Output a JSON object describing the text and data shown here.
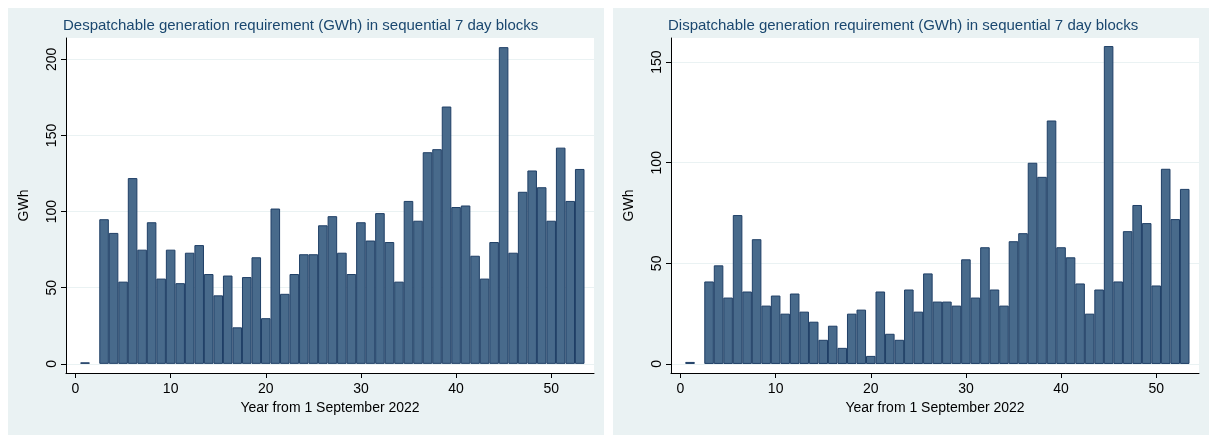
{
  "chart_data": [
    {
      "type": "bar",
      "title": "Despatchable generation requirement (GWh) in sequential 7 day blocks",
      "xlabel": "Year from 1 September 2022",
      "ylabel": "GWh",
      "x": [
        1,
        2,
        3,
        4,
        5,
        6,
        7,
        8,
        9,
        10,
        11,
        12,
        13,
        14,
        15,
        16,
        17,
        18,
        19,
        20,
        21,
        22,
        23,
        24,
        25,
        26,
        27,
        28,
        29,
        30,
        31,
        32,
        33,
        34,
        35,
        36,
        37,
        38,
        39,
        40,
        41,
        42,
        43,
        44,
        45,
        46,
        47,
        48,
        49,
        50,
        51,
        52,
        53
      ],
      "series": [
        {
          "color": "#486a8b",
          "values": [
            1,
            null,
            95,
            86,
            54,
            122,
            75,
            93,
            56,
            75,
            53,
            73,
            78,
            59,
            45,
            58,
            24,
            57,
            70,
            30,
            102,
            46,
            59,
            72,
            72,
            91,
            97,
            73,
            59,
            93,
            81,
            99,
            80,
            54,
            107,
            94,
            139,
            141,
            169,
            103,
            104,
            71,
            56,
            80,
            208,
            73,
            113,
            127,
            116,
            94,
            142,
            107,
            128
          ]
        }
      ],
      "xlim": [
        -1,
        54.5
      ],
      "xticks": [
        0,
        10,
        20,
        30,
        40,
        50
      ],
      "ylim": [
        -6,
        214
      ],
      "yticks": [
        0,
        50,
        100,
        150,
        200
      ],
      "grid": "y"
    },
    {
      "type": "bar",
      "title": "Dispatchable generation requirement (GWh) in sequential 7 day blocks",
      "xlabel": "Year from 1 September 2022",
      "ylabel": "GWh",
      "x": [
        1,
        2,
        3,
        4,
        5,
        6,
        7,
        8,
        9,
        10,
        11,
        12,
        13,
        14,
        15,
        16,
        17,
        18,
        19,
        20,
        21,
        22,
        23,
        24,
        25,
        26,
        27,
        28,
        29,
        30,
        31,
        32,
        33,
        34,
        35,
        36,
        37,
        38,
        39,
        40,
        41,
        42,
        43,
        44,
        45,
        46,
        47,
        48,
        49,
        50,
        51,
        52,
        53
      ],
      "series": [
        {
          "color": "#486a8b",
          "values": [
            1,
            null,
            41,
            49,
            33,
            74,
            36,
            62,
            29,
            34,
            25,
            35,
            26,
            21,
            12,
            19,
            8,
            25,
            27,
            4,
            36,
            15,
            12,
            37,
            26,
            45,
            31,
            31,
            29,
            52,
            33,
            58,
            37,
            29,
            61,
            65,
            100,
            93,
            121,
            58,
            53,
            40,
            25,
            37,
            158,
            41,
            66,
            79,
            70,
            39,
            97,
            72,
            87
          ]
        }
      ],
      "xlim": [
        -1,
        54.5
      ],
      "xticks": [
        0,
        10,
        20,
        30,
        40,
        50
      ],
      "ylim": [
        -4.5,
        162
      ],
      "yticks": [
        0,
        50,
        100,
        150
      ],
      "grid": "y"
    }
  ]
}
